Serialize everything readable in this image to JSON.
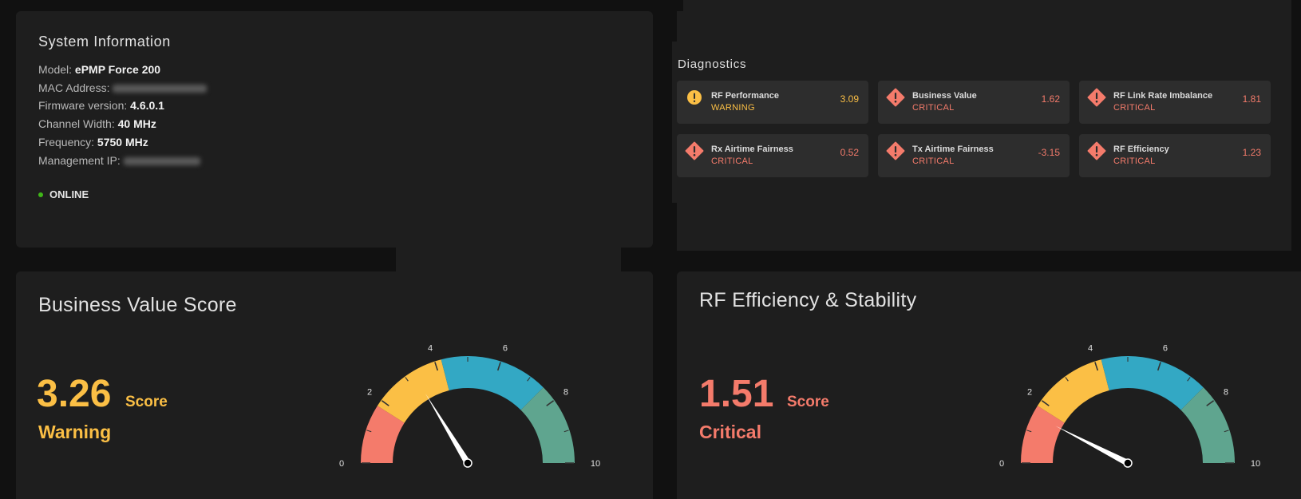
{
  "system_info": {
    "title": "System Information",
    "rows": [
      {
        "label": "Model:",
        "value": "ePMP Force 200",
        "blurred": false
      },
      {
        "label": "MAC Address:",
        "value": "",
        "blurred": true
      },
      {
        "label": "Firmware version:",
        "value": "4.6.0.1",
        "blurred": false
      },
      {
        "label": "Channel Width:",
        "value": "40 MHz",
        "blurred": false
      },
      {
        "label": "Frequency:",
        "value": "5750 MHz",
        "blurred": false
      },
      {
        "label": "Management IP:",
        "value": "",
        "blurred": true
      }
    ],
    "status": "ONLINE",
    "status_color": "#3fb618"
  },
  "diagnostics": {
    "title": "Diagnostics",
    "items": [
      {
        "name": "RF Performance",
        "state": "WARNING",
        "value": "3.09",
        "level": "warning"
      },
      {
        "name": "Business Value",
        "state": "CRITICAL",
        "value": "1.62",
        "level": "critical"
      },
      {
        "name": "RF Link Rate Imbalance",
        "state": "CRITICAL",
        "value": "1.81",
        "level": "critical"
      },
      {
        "name": "Rx Airtime Fairness",
        "state": "CRITICAL",
        "value": "0.52",
        "level": "critical"
      },
      {
        "name": "Tx Airtime Fairness",
        "state": "CRITICAL",
        "value": "-3.15",
        "level": "critical"
      },
      {
        "name": "RF Efficiency",
        "state": "CRITICAL",
        "value": "1.23",
        "level": "critical"
      }
    ]
  },
  "business_value": {
    "title": "Business Value Score",
    "score": "3.26",
    "unit": "Score",
    "state": "Warning",
    "color": "#fbbf45"
  },
  "rf_efficiency": {
    "title": "RF Efficiency & Stability",
    "score": "1.51",
    "unit": "Score",
    "state": "Critical",
    "color": "#f47b6b"
  },
  "colors": {
    "warning": "#fbbf45",
    "critical": "#f47b6b",
    "band_red": "#f47b6b",
    "band_yellow": "#fbbf45",
    "band_blue": "#33a8c4",
    "band_green": "#5fa58f"
  },
  "chart_data": [
    {
      "type": "gauge",
      "title": "Business Value Score",
      "value": 3.26,
      "range": [
        0,
        10
      ],
      "tick_labels": [
        "0",
        "2",
        "4",
        "6",
        "8",
        "10"
      ],
      "bands": [
        {
          "from": 0,
          "to": 1.8,
          "color": "#f47b6b"
        },
        {
          "from": 1.8,
          "to": 4.2,
          "color": "#fbbf45"
        },
        {
          "from": 4.2,
          "to": 7.5,
          "color": "#33a8c4"
        },
        {
          "from": 7.5,
          "to": 10,
          "color": "#5fa58f"
        }
      ]
    },
    {
      "type": "gauge",
      "title": "RF Efficiency & Stability",
      "value": 1.51,
      "range": [
        0,
        10
      ],
      "tick_labels": [
        "0",
        "2",
        "4",
        "6",
        "8",
        "10"
      ],
      "bands": [
        {
          "from": 0,
          "to": 1.8,
          "color": "#f47b6b"
        },
        {
          "from": 1.8,
          "to": 4.2,
          "color": "#fbbf45"
        },
        {
          "from": 4.2,
          "to": 7.5,
          "color": "#33a8c4"
        },
        {
          "from": 7.5,
          "to": 10,
          "color": "#5fa58f"
        }
      ]
    }
  ]
}
